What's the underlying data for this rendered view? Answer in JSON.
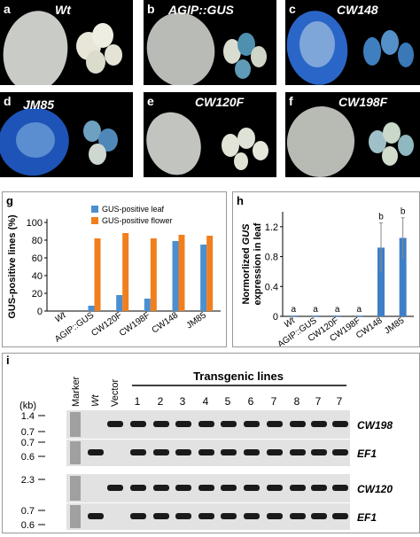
{
  "photos": [
    {
      "letter": "a",
      "name": "Wt",
      "leaf": "white"
    },
    {
      "letter": "b",
      "name": "AGIP::GUS",
      "leaf": "white"
    },
    {
      "letter": "c",
      "name": "CW148",
      "leaf": "blue"
    },
    {
      "letter": "d",
      "name": "JM85",
      "leaf": "blue"
    },
    {
      "letter": "e",
      "name": "CW120F",
      "leaf": "white"
    },
    {
      "letter": "f",
      "name": "CW198F",
      "leaf": "white"
    }
  ],
  "colors": {
    "leaf_series": "#4b8fd0",
    "flower_series": "#f07f1e",
    "bar_h": "#3f7fc8",
    "gus_blue": "#1f5fc4"
  },
  "chart_data": [
    {
      "panel": "g",
      "type": "bar",
      "ylabel": "GUS-positive lines (%)",
      "ylim": [
        0,
        100
      ],
      "yticks": [
        0,
        20,
        40,
        60,
        80,
        100
      ],
      "categories": [
        "Wt",
        "AGIP::GUS",
        "CW120F",
        "CW198F",
        "CW148",
        "JM85"
      ],
      "series": [
        {
          "name": "GUS-positive leaf",
          "values": [
            0,
            6,
            18,
            14,
            79,
            75
          ]
        },
        {
          "name": "GUS-positive flower",
          "values": [
            0,
            82,
            88,
            82,
            86,
            85
          ]
        }
      ],
      "legend": "top-center"
    },
    {
      "panel": "h",
      "type": "bar",
      "ylabel_line1": "Normorlized GUS",
      "ylabel_italic": "GUS",
      "ylabel_pre": "Normorlized ",
      "ylabel_line2": "expression in leaf",
      "ylim": [
        0,
        1.4
      ],
      "yticks": [
        "0",
        "0.4",
        "0.8",
        "1.2"
      ],
      "categories": [
        "Wt",
        "AGIP::GUS",
        "CW120F",
        "CW198F",
        "CW148",
        "JM85"
      ],
      "values": [
        0.01,
        0.01,
        0.01,
        0.01,
        0.92,
        1.05
      ],
      "errors": [
        0,
        0,
        0,
        0,
        0.33,
        0.27
      ],
      "letters": [
        "a",
        "a",
        "a",
        "a",
        "b",
        "b"
      ]
    }
  ],
  "gel": {
    "letter": "i",
    "kb_label": "(kb)",
    "lanes": [
      "Marker",
      "Wt",
      "Vector",
      "1",
      "2",
      "3",
      "4",
      "5",
      "6",
      "7",
      "8",
      "7",
      "7"
    ],
    "group_label": "Transgenic lines",
    "sizes": [
      "1.4",
      "0.7",
      "0.7",
      "0.6",
      "2.3",
      "0.7",
      "0.6"
    ],
    "rows": [
      "CW198",
      "EF1",
      "CW120",
      "EF1"
    ]
  }
}
